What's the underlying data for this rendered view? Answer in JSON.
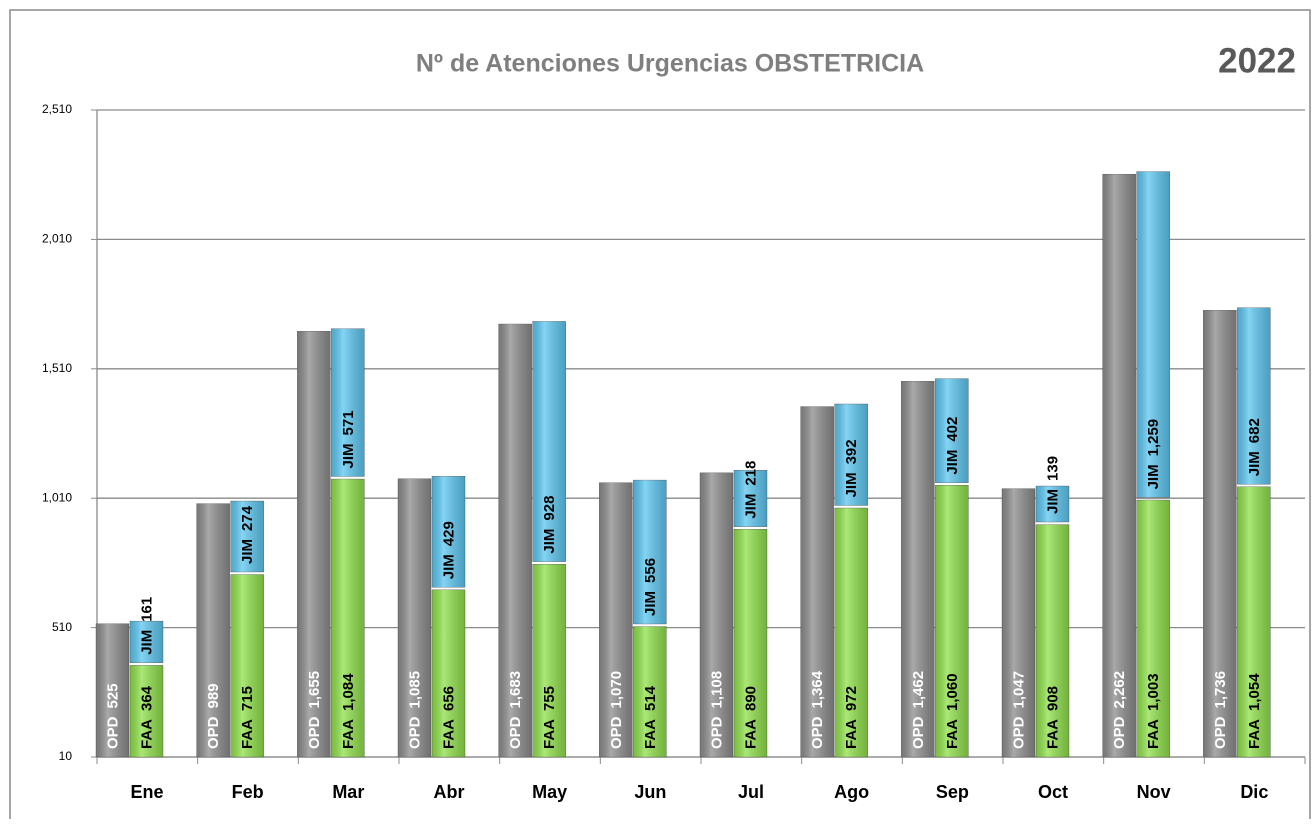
{
  "chart_data": {
    "type": "bar",
    "title": "Nº de Atenciones Urgencias OBSTETRICIA",
    "subtitle": "2022",
    "categories": [
      "Ene",
      "Feb",
      "Mar",
      "Abr",
      "May",
      "Jun",
      "Jul",
      "Ago",
      "Sep",
      "Oct",
      "Nov",
      "Dic"
    ],
    "series": [
      {
        "name": "OPD",
        "color": "#8c8c8c",
        "stack": "a",
        "values": [
          525,
          989,
          1655,
          1085,
          1683,
          1070,
          1108,
          1364,
          1462,
          1047,
          2262,
          1736
        ],
        "value_labels": [
          "525",
          "989",
          "1,655",
          "1,085",
          "1,683",
          "1,070",
          "1,108",
          "1,364",
          "1,462",
          "1,047",
          "2,262",
          "1,736"
        ]
      },
      {
        "name": "FAA",
        "color": "#8fe04a",
        "stack": "b",
        "values": [
          364,
          715,
          1084,
          656,
          755,
          514,
          890,
          972,
          1060,
          908,
          1003,
          1054
        ],
        "value_labels": [
          "364",
          "715",
          "1,084",
          "656",
          "755",
          "514",
          "890",
          "972",
          "1,060",
          "908",
          "1,003",
          "1,054"
        ]
      },
      {
        "name": "JIM",
        "color": "#5cc6f0",
        "stack": "b",
        "values": [
          161,
          274,
          571,
          429,
          928,
          556,
          218,
          392,
          402,
          139,
          1259,
          682
        ],
        "value_labels": [
          "161",
          "274",
          "571",
          "429",
          "928",
          "556",
          "218",
          "392",
          "402",
          "139",
          "1,259",
          "682"
        ]
      }
    ],
    "ylim": [
      10,
      2510
    ],
    "yticks": [
      10,
      510,
      {
        "value": 1010,
        "label": "1,010"
      },
      {
        "value": 1510,
        "label": "1,510"
      },
      {
        "value": 2010,
        "label": "2,010"
      },
      {
        "value": 2510,
        "label": "2,510"
      }
    ],
    "grid": true
  }
}
